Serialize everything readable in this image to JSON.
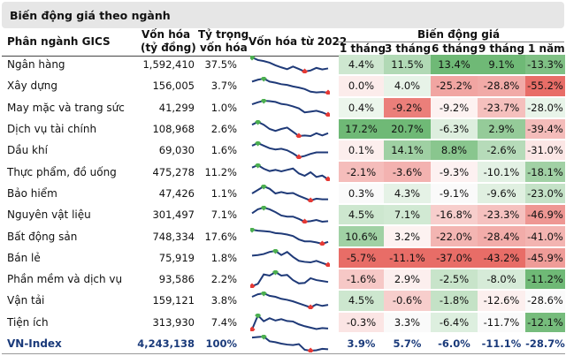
{
  "title": "Biến động giá theo ngành",
  "headers": {
    "sector": "Phân ngành GICS",
    "cap_line1": "Vốn hóa",
    "cap_line2": "(tỷ đồng)",
    "weight_line1": "Tỷ trọng",
    "weight_line2": "vốn hóa",
    "spark": "Vốn hóa từ 2022",
    "change_group": "Biến động giá",
    "periods": [
      "1 tháng",
      "3 tháng",
      "6 tháng",
      "9 tháng",
      "1 năm"
    ]
  },
  "colors": {
    "green": "#63b36a",
    "red": "#e6625c",
    "line": "#1f3a78",
    "max_marker": "#4caf50",
    "min_marker": "#e53935",
    "total_text": "#1a3a7a"
  },
  "rows": [
    {
      "name": "Ngân hàng",
      "cap": "1,592,410",
      "weight": "37.5%",
      "changes": [
        4.4,
        11.5,
        13.4,
        9.1,
        -13.3
      ],
      "spark": [
        10,
        9,
        8.6,
        8,
        7,
        6.2,
        5.5,
        6.5,
        5.6,
        4.6,
        5,
        6,
        5.4,
        5.8
      ]
    },
    {
      "name": "Xây dựng",
      "cap": "156,005",
      "weight": "3.7%",
      "changes": [
        0.0,
        4.0,
        -25.2,
        -28.8,
        -55.2
      ],
      "spark": [
        8,
        9,
        9.6,
        8,
        7.4,
        6.6,
        6.2,
        5.4,
        4.8,
        4,
        2.6,
        2.2,
        2.4,
        2
      ]
    },
    {
      "name": "May mặc và trang sức",
      "cap": "41,299",
      "weight": "1.0%",
      "changes": [
        0.4,
        -9.2,
        -9.2,
        -23.7,
        -28.0
      ],
      "spark": [
        7,
        8,
        8.8,
        8.6,
        8.2,
        7.2,
        6.8,
        6,
        5,
        3,
        3.4,
        3.8,
        3,
        1.8
      ]
    },
    {
      "name": "Dịch vụ tài chính",
      "cap": "108,968",
      "weight": "2.6%",
      "changes": [
        17.2,
        20.7,
        -6.3,
        2.9,
        -39.4
      ],
      "spark": [
        8,
        9,
        8,
        6.5,
        5.8,
        6.5,
        7,
        5.5,
        4,
        4.2,
        4,
        5,
        4.2,
        5
      ]
    },
    {
      "name": "Dầu khí",
      "cap": "69,030",
      "weight": "1.6%",
      "changes": [
        0.1,
        14.1,
        8.8,
        -2.6,
        -31.0
      ],
      "spark": [
        8,
        9,
        8,
        7,
        6.5,
        6.8,
        6.2,
        5,
        3.5,
        4,
        4.8,
        5.4,
        5.4,
        5.4
      ]
    },
    {
      "name": "Thực phẩm, đồ uống",
      "cap": "475,278",
      "weight": "11.2%",
      "changes": [
        -2.1,
        -3.6,
        -9.3,
        -10.1,
        -18.1
      ],
      "spark": [
        8,
        9,
        7.5,
        6.5,
        7,
        6.4,
        7,
        7.6,
        5.5,
        4.5,
        6,
        4,
        4.6,
        3
      ]
    },
    {
      "name": "Bảo hiểm",
      "cap": "47,426",
      "weight": "1.1%",
      "changes": [
        0.3,
        4.3,
        -9.1,
        -9.6,
        -23.0
      ],
      "spark": [
        6,
        7.5,
        9,
        8,
        6,
        6.6,
        6,
        6.2,
        5,
        4,
        3,
        3.8,
        3.5,
        3.5
      ]
    },
    {
      "name": "Nguyên vật liệu",
      "cap": "301,497",
      "weight": "7.1%",
      "changes": [
        4.5,
        7.1,
        -16.8,
        -23.3,
        -46.9
      ],
      "spark": [
        7,
        8.4,
        9,
        8.4,
        7.4,
        6.2,
        5.8,
        5.8,
        5,
        4,
        4.2,
        4.6,
        4,
        4.2
      ]
    },
    {
      "name": "Bất động sản",
      "cap": "748,334",
      "weight": "17.6%",
      "changes": [
        10.6,
        3.2,
        -22.0,
        -28.4,
        -41.0
      ],
      "spark": [
        9,
        8.6,
        8.4,
        8.2,
        7.6,
        7.4,
        7,
        6.4,
        5,
        4.2,
        4.2,
        3.8,
        3.2,
        4
      ]
    },
    {
      "name": "Bán lẻ",
      "cap": "75,919",
      "weight": "1.8%",
      "changes": [
        -5.7,
        -11.1,
        -37.0,
        -43.2,
        -45.9
      ],
      "spark": [
        7,
        7.2,
        7.6,
        8.4,
        8.8,
        7.2,
        8.4,
        6.5,
        5,
        4.6,
        4.4,
        5,
        4.2,
        3.4
      ]
    },
    {
      "name": "Phần mềm và dịch vụ",
      "cap": "93,586",
      "weight": "2.2%",
      "changes": [
        -1.6,
        2.9,
        -2.5,
        -8.0,
        -11.2
      ],
      "spark": [
        2,
        3,
        7,
        6.5,
        8,
        6.5,
        6.8,
        4.6,
        3.2,
        3.4,
        5.4,
        4.6,
        4.2,
        3.8
      ]
    },
    {
      "name": "Vận tải",
      "cap": "159,121",
      "weight": "3.8%",
      "changes": [
        4.5,
        -0.6,
        -1.8,
        -12.6,
        -28.6
      ],
      "spark": [
        7.6,
        8.6,
        9,
        8,
        7.6,
        6.8,
        6.4,
        5.8,
        5,
        4.2,
        3.4,
        4.6,
        4,
        4.4
      ]
    },
    {
      "name": "Tiện ích",
      "cap": "313,930",
      "weight": "7.4%",
      "changes": [
        -0.3,
        3.3,
        -6.4,
        -11.7,
        -12.1
      ],
      "spark": [
        3,
        9,
        6.5,
        7.8,
        6.8,
        7.4,
        6.6,
        6.4,
        5.2,
        4.4,
        3.8,
        3.2,
        3.6,
        3.4
      ]
    },
    {
      "name": "VN-Index",
      "cap": "4,243,138",
      "weight": "100%",
      "changes": [
        3.9,
        5.7,
        -6.0,
        -11.1,
        -28.7
      ],
      "spark": [
        8.6,
        8.8,
        9,
        7,
        6.6,
        6,
        5.6,
        5.4,
        5.8,
        3.4,
        3,
        3.2,
        3.8,
        3.6
      ],
      "total": true
    }
  ]
}
